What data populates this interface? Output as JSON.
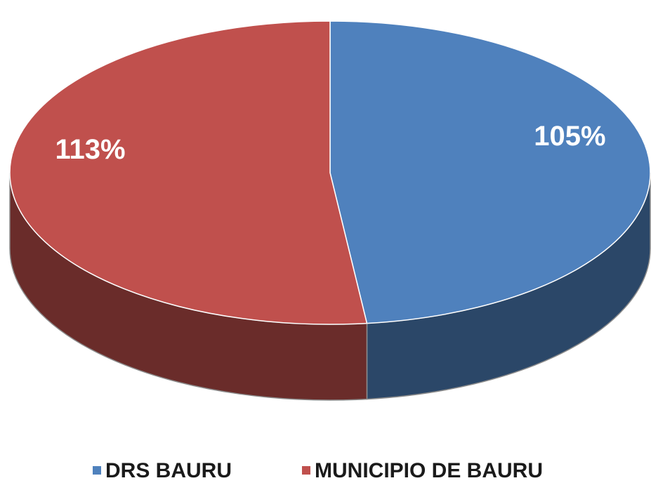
{
  "chart_data": {
    "type": "pie",
    "categories": [
      "DRS BAURU",
      "MUNICIPIO DE BAURU"
    ],
    "values": [
      105,
      113
    ],
    "value_labels": [
      "105%",
      "113%"
    ],
    "colors": [
      "#4f81bd",
      "#c0504d"
    ]
  }
}
